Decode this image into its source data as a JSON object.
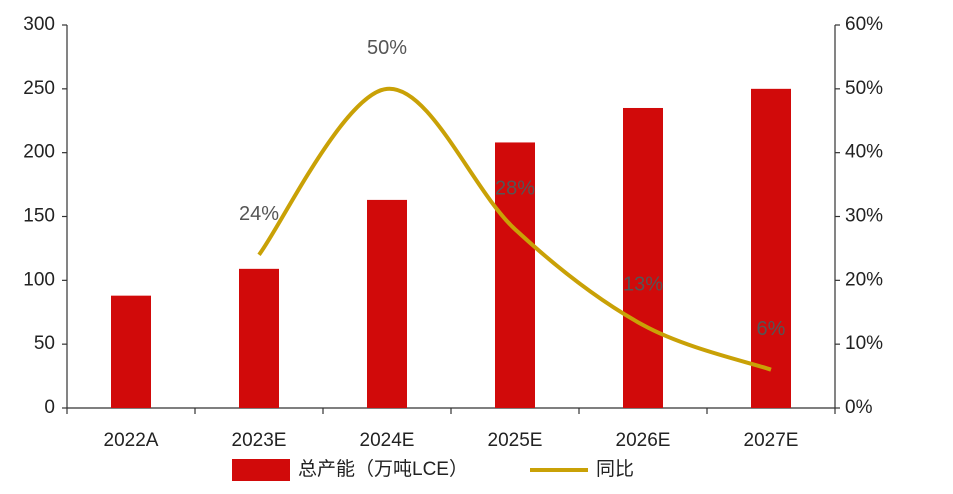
{
  "chart_data": {
    "type": "bar",
    "categories": [
      "2022A",
      "2023E",
      "2024E",
      "2025E",
      "2026E",
      "2027E"
    ],
    "series": [
      {
        "name": "总产能（万吨LCE）",
        "color": "#d10a0a",
        "values": [
          88,
          109,
          163,
          208,
          235,
          250
        ]
      },
      {
        "name": "同比",
        "color": "#c9a106",
        "type": "line",
        "axis": "y2",
        "values": [
          null,
          24,
          50,
          28,
          13,
          6
        ],
        "value_labels": [
          null,
          "24%",
          "50%",
          "28%",
          "13%",
          "6%"
        ]
      }
    ],
    "ylim": [
      0,
      300
    ],
    "yticks": [
      0,
      50,
      100,
      150,
      200,
      250,
      300
    ],
    "y2lim": [
      0,
      60
    ],
    "y2ticks": [
      {
        "value": 0,
        "label": "0%"
      },
      {
        "value": 10,
        "label": "10%"
      },
      {
        "value": 20,
        "label": "20%"
      },
      {
        "value": 30,
        "label": "30%"
      },
      {
        "value": 40,
        "label": "40%"
      },
      {
        "value": 50,
        "label": "50%"
      },
      {
        "value": 60,
        "label": "60%"
      }
    ],
    "legend": "bottom"
  }
}
